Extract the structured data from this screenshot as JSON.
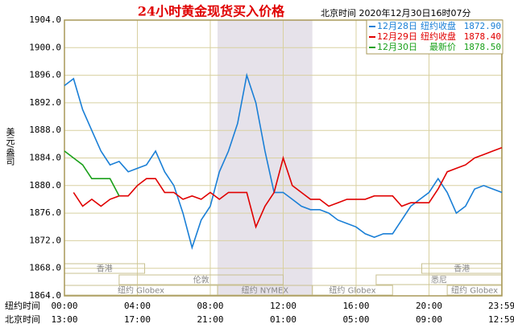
{
  "chart_data": {
    "type": "line",
    "title": "24小时黄金现货买入价格",
    "subtitle": "北京时间  2020年12月30日16时07分",
    "y_label": "美元/盎司",
    "x_row_labels": [
      "纽约时间",
      "北京时间"
    ],
    "x": [
      0,
      0.5,
      1,
      1.5,
      2,
      2.5,
      3,
      3.5,
      4,
      4.5,
      5,
      5.5,
      6,
      6.5,
      7,
      7.5,
      8,
      8.5,
      9,
      9.5,
      10,
      10.5,
      11,
      11.5,
      12,
      12.5,
      13,
      13.5,
      14,
      14.5,
      15,
      15.5,
      16,
      16.5,
      17,
      17.5,
      18,
      18.5,
      19,
      19.5,
      20,
      20.5,
      21,
      21.5,
      22,
      22.5,
      23,
      23.5,
      24
    ],
    "xlim": [
      0,
      24
    ],
    "xticks": [
      {
        "value": 0,
        "label": "00:00"
      },
      {
        "value": 4,
        "label": "04:00"
      },
      {
        "value": 8,
        "label": "08:00"
      },
      {
        "value": 12,
        "label": "12:00"
      },
      {
        "value": 16,
        "label": "16:00"
      },
      {
        "value": 20,
        "label": "20:00"
      },
      {
        "value": 23.98,
        "label": "23:59"
      }
    ],
    "x2ticks": [
      {
        "value": 0,
        "label": "13:00"
      },
      {
        "value": 4,
        "label": "17:00"
      },
      {
        "value": 8,
        "label": "21:00"
      },
      {
        "value": 12,
        "label": "01:00"
      },
      {
        "value": 16,
        "label": "05:00"
      },
      {
        "value": 20,
        "label": "09:00"
      },
      {
        "value": 23.98,
        "label": "12:59"
      }
    ],
    "ylim": [
      1864,
      1904
    ],
    "yticks": [
      {
        "value": 1864,
        "label": "1864.0"
      },
      {
        "value": 1868,
        "label": "1868.0"
      },
      {
        "value": 1872,
        "label": "1872.0"
      },
      {
        "value": 1876,
        "label": "1876.0"
      },
      {
        "value": 1880,
        "label": "1880.0"
      },
      {
        "value": 1884,
        "label": "1884.0"
      },
      {
        "value": 1888,
        "label": "1888.0"
      },
      {
        "value": 1892,
        "label": "1892.0"
      },
      {
        "value": 1896,
        "label": "1896.0"
      },
      {
        "value": 1900,
        "label": "1900.0"
      },
      {
        "value": 1904,
        "label": "1904.0"
      }
    ],
    "grid": true,
    "series": [
      {
        "name": "12月28日",
        "note": "纽约收盘",
        "last": 1872.9,
        "last_label": "1872.90",
        "color": "#1a7fd6",
        "values": [
          1894.5,
          1895.5,
          1891,
          1888,
          1885,
          1883,
          1883.5,
          1882,
          1882.5,
          1883,
          1885,
          1882,
          1880,
          1876,
          1871,
          1875,
          1877,
          1882,
          1885,
          1889,
          1896,
          1892,
          1885,
          1879,
          1879,
          1878,
          1877,
          1876.5,
          1876.5,
          1876,
          1875,
          1874.5,
          1874,
          1873,
          1872.5,
          1873,
          1873,
          1875,
          1877,
          1878,
          1879,
          1881,
          1879,
          1876,
          1877,
          1879.5,
          1880,
          1879.5,
          1879
        ]
      },
      {
        "name": "12月29日",
        "note": "纽约收盘",
        "last": 1878.4,
        "last_label": "1878.40",
        "color": "#e00000",
        "values": [
          null,
          1879,
          1877,
          1878,
          1877,
          1878,
          1878.5,
          1878.5,
          1880,
          1881,
          1881,
          1879,
          1879,
          1878,
          1878.5,
          1878,
          1879,
          1878,
          1879,
          1879,
          1879,
          1874,
          1877,
          1879,
          1884,
          1880,
          1879,
          1878,
          1878,
          1877,
          1877.5,
          1878,
          1878,
          1878,
          1878.5,
          1878.5,
          1878.5,
          1877,
          1877.5,
          1877.5,
          1877.5,
          1879.5,
          1882,
          1882.5,
          1883,
          1884,
          1884.5,
          1885,
          1885.5
        ]
      },
      {
        "name": "12月30日",
        "note": "最新价",
        "last": 1878.5,
        "last_label": "1878.50",
        "color": "#1aa01a",
        "values": [
          1885,
          1884,
          1883,
          1881,
          1881,
          1881,
          1878.5,
          null,
          null,
          null,
          null,
          null,
          null,
          null,
          null,
          null,
          null,
          null,
          null,
          null,
          null,
          null,
          null,
          null,
          null,
          null,
          null,
          null,
          null,
          null,
          null,
          null,
          null,
          null,
          null,
          null,
          null,
          null,
          null,
          null,
          null,
          null,
          null,
          null,
          null,
          null,
          null,
          null,
          null
        ]
      }
    ],
    "sessions": [
      {
        "label": "香港",
        "start": 0,
        "end": 4.4,
        "row": 0
      },
      {
        "label": "香港",
        "start": 19.6,
        "end": 24,
        "row": 0
      },
      {
        "label": "伦敦",
        "start": 3,
        "end": 12,
        "row": 1
      },
      {
        "label": "悉尼",
        "start": 17.1,
        "end": 24,
        "row": 1
      },
      {
        "label": "纽约 Globex",
        "start": 0,
        "end": 8.4,
        "row": 2
      },
      {
        "label": "纽约 NYMEX",
        "start": 8.4,
        "end": 13.6,
        "row": 2,
        "shaded": true
      },
      {
        "label": "纽约 Globex",
        "start": 13.6,
        "end": 18,
        "row": 2
      },
      {
        "label": "纽约 Globex",
        "start": 21,
        "end": 24,
        "row": 2
      }
    ]
  }
}
